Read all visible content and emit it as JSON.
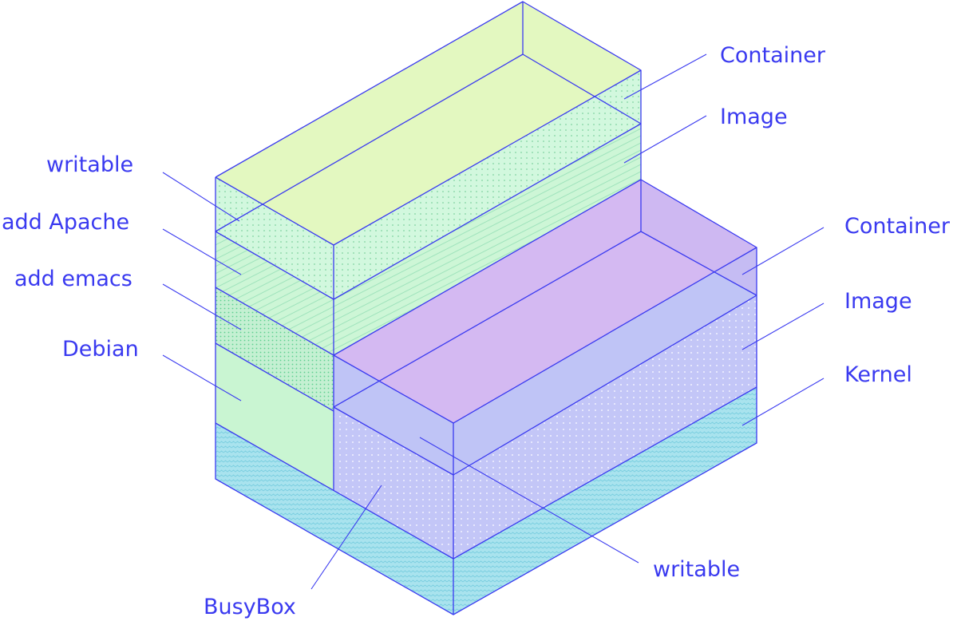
{
  "diagram": {
    "colors": {
      "line": "#3a3af0",
      "kernel": "#a9e3ee",
      "debian": "#c9f5d2",
      "emacs": "#c4f0d2",
      "apache": "#cdf6d6",
      "writable_left": "#d2f8de",
      "container_left_top": "#e3f8c0",
      "busybox": "#c3c6f7",
      "writable_right": "#bfc4f6",
      "container_right_top": "#d4b9f2"
    },
    "left_stack": {
      "writable": "writable",
      "add_apache": "add Apache",
      "add_emacs": "add emacs",
      "debian": "Debian",
      "container": "Container",
      "image": "Image"
    },
    "right_stack": {
      "container": "Container",
      "image": "Image",
      "kernel": "Kernel",
      "writable": "writable",
      "busybox": "BusyBox"
    }
  }
}
